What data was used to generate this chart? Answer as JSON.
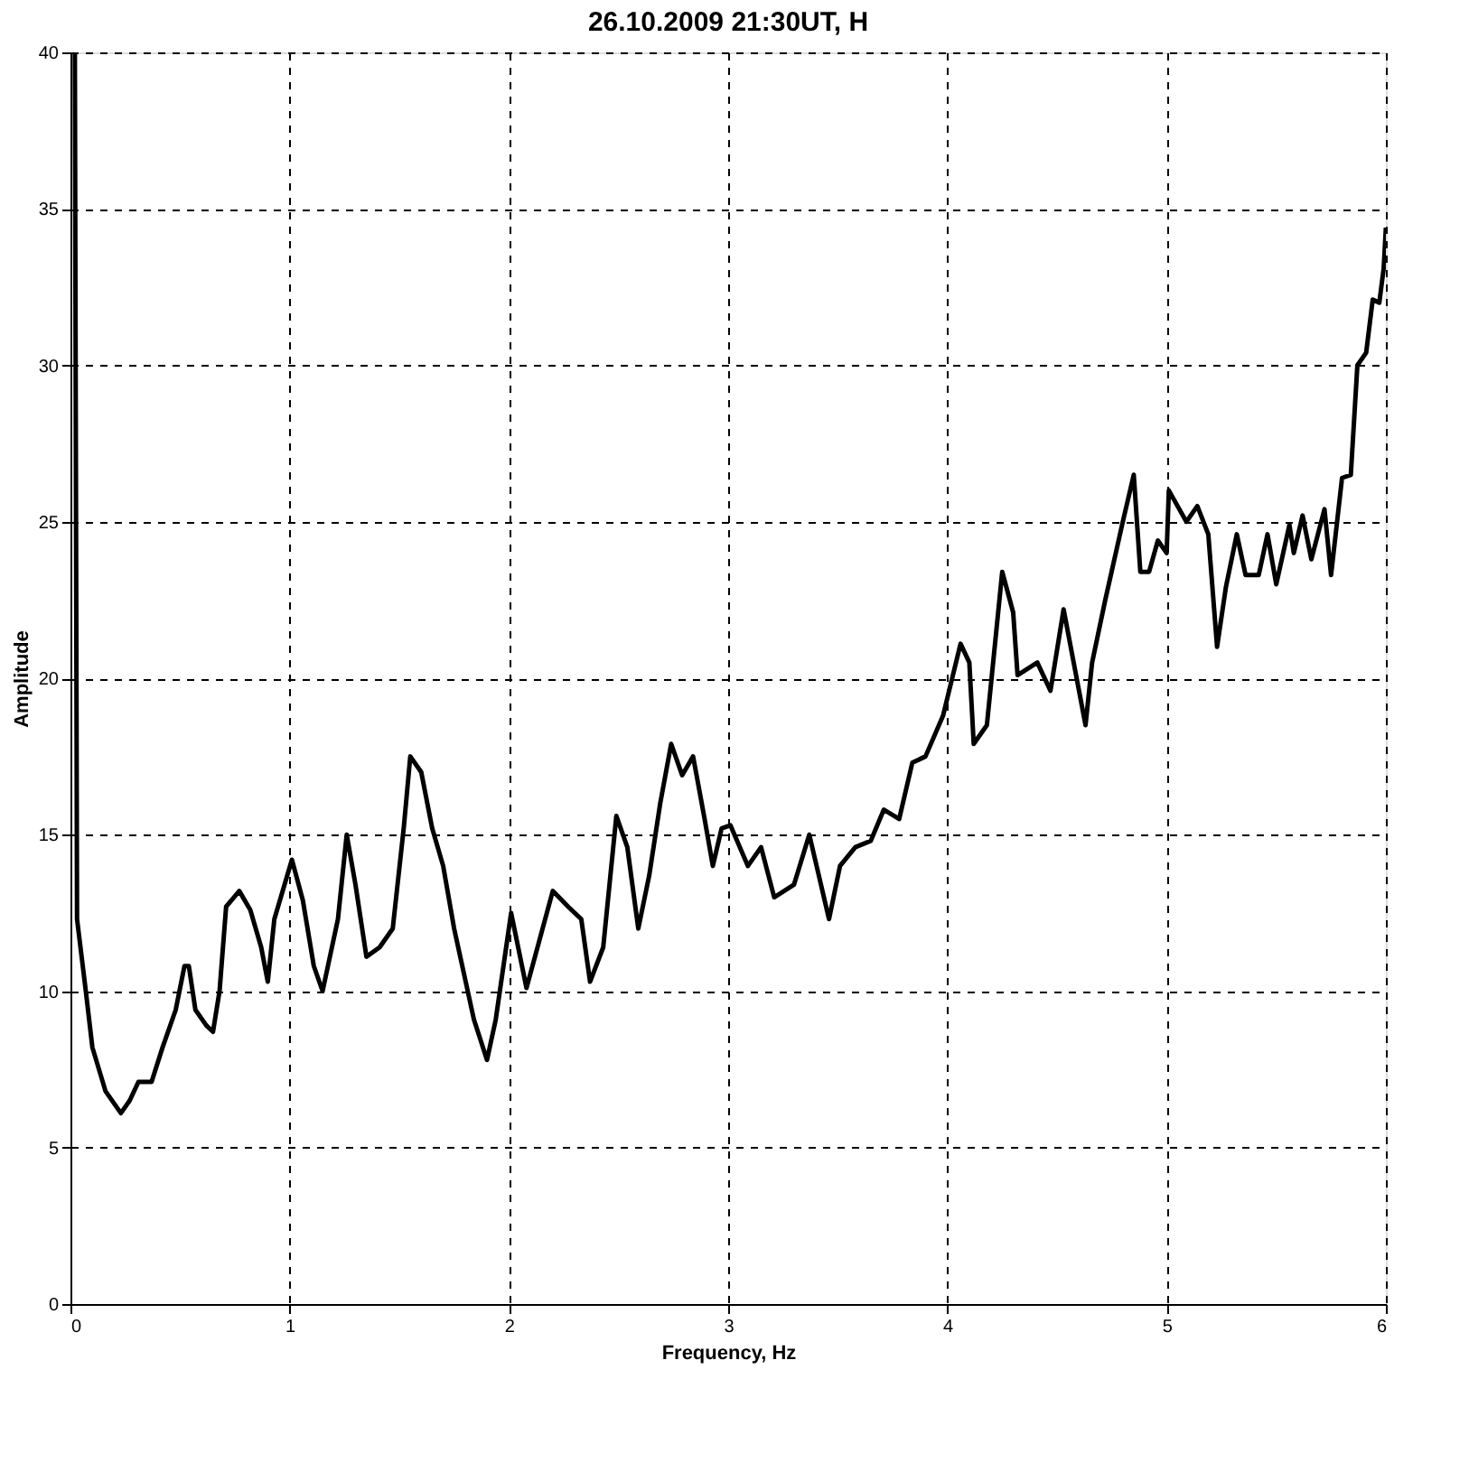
{
  "chart_data": {
    "type": "line",
    "title": "26.10.2009 21:30UT, H",
    "xlabel": "Frequency, Hz",
    "ylabel": "Amplitude",
    "xlim": [
      0,
      6
    ],
    "xticks": [
      0,
      1,
      2,
      3,
      4,
      5,
      6
    ],
    "ylim": [
      0,
      40
    ],
    "yticks": [
      0,
      5,
      10,
      15,
      20,
      25,
      30,
      35,
      40
    ],
    "grid": true,
    "legend": false,
    "marker": "none",
    "line_style": "solid",
    "series": [
      {
        "color": "#000000",
        "x": [
          0.02,
          0.03,
          0.07,
          0.1,
          0.16,
          0.23,
          0.27,
          0.31,
          0.37,
          0.42,
          0.48,
          0.52,
          0.54,
          0.57,
          0.62,
          0.65,
          0.68,
          0.71,
          0.77,
          0.82,
          0.87,
          0.9,
          0.93,
          1.01,
          1.06,
          1.11,
          1.15,
          1.22,
          1.26,
          1.3,
          1.35,
          1.41,
          1.47,
          1.52,
          1.55,
          1.6,
          1.65,
          1.7,
          1.75,
          1.84,
          1.9,
          1.94,
          2.01,
          2.08,
          2.2,
          2.27,
          2.33,
          2.37,
          2.43,
          2.49,
          2.54,
          2.59,
          2.64,
          2.69,
          2.74,
          2.79,
          2.84,
          2.89,
          2.93,
          2.97,
          3.01,
          3.09,
          3.15,
          3.21,
          3.3,
          3.37,
          3.46,
          3.51,
          3.58,
          3.65,
          3.71,
          3.78,
          3.84,
          3.9,
          3.98,
          4.06,
          4.1,
          4.12,
          4.18,
          4.25,
          4.3,
          4.32,
          4.41,
          4.47,
          4.53,
          4.63,
          4.66,
          4.72,
          4.8,
          4.85,
          4.88,
          4.92,
          4.96,
          5.0,
          5.01,
          5.09,
          5.14,
          5.19,
          5.23,
          5.27,
          5.32,
          5.36,
          5.42,
          5.46,
          5.5,
          5.56,
          5.58,
          5.62,
          5.66,
          5.72,
          5.75,
          5.8,
          5.84,
          5.87,
          5.91,
          5.94,
          5.97,
          5.99,
          6.0
        ],
        "values": [
          40,
          12.3,
          10,
          8.2,
          6.8,
          6.1,
          6.5,
          7.1,
          7.1,
          8.2,
          9.4,
          10.8,
          10.8,
          9.4,
          8.9,
          8.7,
          10,
          12.7,
          13.2,
          12.6,
          11.4,
          10.3,
          12.3,
          14.2,
          12.9,
          10.8,
          10,
          12.3,
          15,
          13.4,
          11.1,
          11.4,
          12,
          15.2,
          17.5,
          17,
          15.2,
          14,
          12,
          9.1,
          7.8,
          9.1,
          12.5,
          10.1,
          13.2,
          12.7,
          12.3,
          10.3,
          11.4,
          15.6,
          14.6,
          12,
          13.7,
          16,
          17.9,
          16.9,
          17.5,
          15.6,
          14,
          15.2,
          15.3,
          14,
          14.6,
          13,
          13.4,
          15,
          12.3,
          14,
          14.6,
          14.8,
          15.8,
          15.5,
          17.3,
          17.5,
          18.8,
          21.1,
          20.5,
          17.9,
          18.5,
          23.4,
          22.1,
          20.1,
          20.5,
          19.6,
          22.2,
          18.5,
          20.5,
          22.5,
          25,
          26.5,
          23.4,
          23.4,
          24.4,
          24,
          26,
          25,
          25.5,
          24.6,
          21,
          22.9,
          24.6,
          23.3,
          23.3,
          24.6,
          23,
          24.9,
          24,
          25.2,
          23.8,
          25.4,
          23.3,
          26.4,
          26.5,
          30,
          30.4,
          32.1,
          32,
          33.1,
          34.4
        ]
      }
    ]
  }
}
